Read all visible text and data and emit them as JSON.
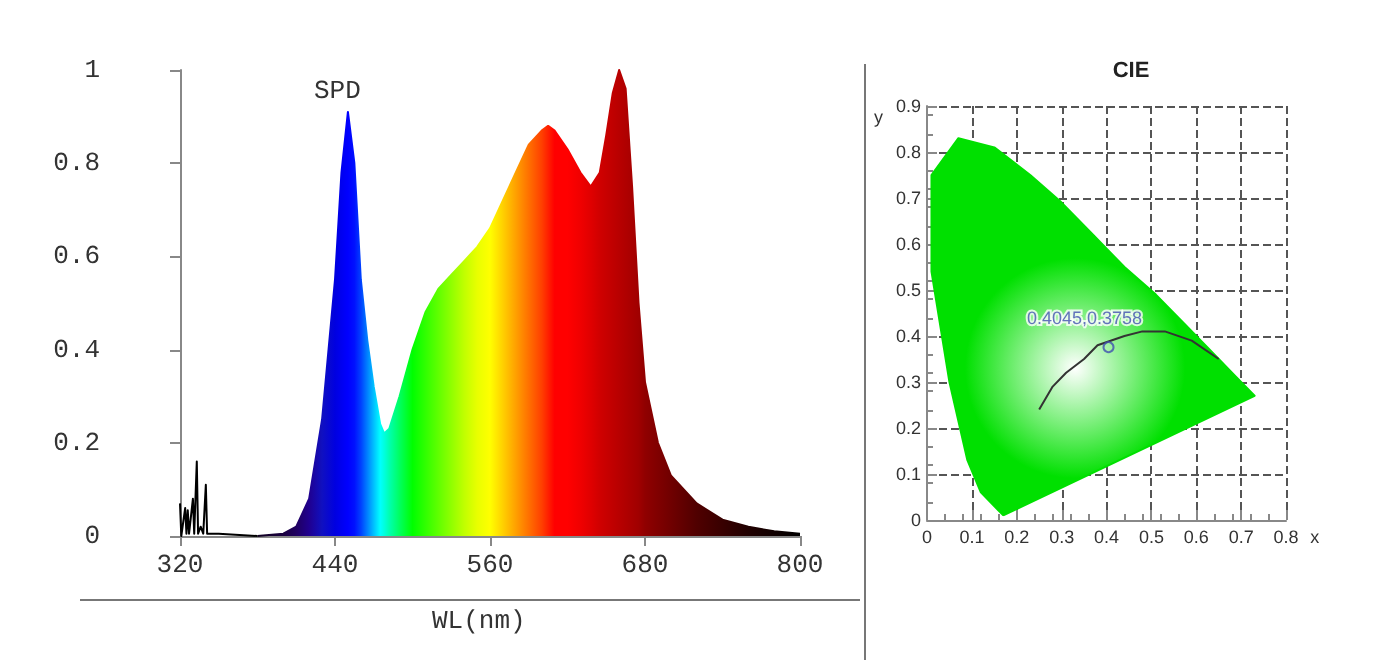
{
  "chart_data": [
    {
      "type": "area",
      "title": "SPD",
      "xlabel": "WL(nm)",
      "xlim": [
        320,
        800
      ],
      "xticks": [
        320,
        440,
        560,
        680,
        800
      ],
      "ylim": [
        0,
        1
      ],
      "yticks": [
        0,
        0.2,
        0.4,
        0.6,
        0.8,
        1
      ],
      "grid": false,
      "marker": "none",
      "series": [
        {
          "x": [
            380,
            400,
            410,
            420,
            430,
            440,
            445,
            450,
            455,
            460,
            465,
            470,
            475,
            478,
            482,
            490,
            500,
            510,
            520,
            530,
            540,
            550,
            560,
            570,
            580,
            590,
            600,
            605,
            610,
            620,
            630,
            638,
            645,
            650,
            655,
            660,
            665,
            670,
            675,
            680,
            690,
            700,
            720,
            740,
            760,
            780,
            800
          ],
          "values": [
            0,
            0.005,
            0.02,
            0.08,
            0.25,
            0.55,
            0.78,
            0.91,
            0.8,
            0.55,
            0.42,
            0.32,
            0.24,
            0.22,
            0.23,
            0.3,
            0.4,
            0.48,
            0.53,
            0.56,
            0.59,
            0.62,
            0.66,
            0.72,
            0.78,
            0.84,
            0.87,
            0.88,
            0.87,
            0.83,
            0.78,
            0.75,
            0.78,
            0.86,
            0.95,
            1,
            0.96,
            0.75,
            0.5,
            0.33,
            0.2,
            0.13,
            0.07,
            0.035,
            0.02,
            0.01,
            0.005
          ],
          "colors": [
            "#100020",
            "#1a0040",
            "#200060",
            "#200090",
            "#1010c0",
            "#0000e0",
            "#0000f0",
            "#0000ff",
            "#0010ff",
            "#0040ff",
            "#0080ff",
            "#00c0ff",
            "#00ffff",
            "#00ffe0",
            "#00ffb0",
            "#00ff60",
            "#00ff00",
            "#30ff00",
            "#60ff00",
            "#90ff00",
            "#c0ff00",
            "#e8ff00",
            "#ffff00",
            "#ffd000",
            "#ffa000",
            "#ff7000",
            "#ff4000",
            "#ff2000",
            "#ff0000",
            "#ff0000",
            "#f00000",
            "#e00000",
            "#d00000",
            "#c80000",
            "#c00000",
            "#b80000",
            "#b00000",
            "#a80000",
            "#a00000",
            "#900000",
            "#800000",
            "#700000",
            "#500000",
            "#380000",
            "#200000",
            "#100000",
            "#000000"
          ]
        },
        {
          "type": "line",
          "color": "#000000",
          "x": [
            320,
            321,
            324,
            325,
            326,
            327,
            330,
            331,
            333,
            334,
            336,
            338,
            340,
            341,
            350,
            380
          ],
          "values": [
            0.07,
            0,
            0.06,
            0.005,
            0.055,
            0.005,
            0.08,
            0.005,
            0.16,
            0.005,
            0.02,
            0.005,
            0.11,
            0.005,
            0.005,
            0
          ]
        }
      ]
    },
    {
      "type": "scatter",
      "title": "CIE",
      "xlabel": "x",
      "ylabel": "y",
      "xlim": [
        0,
        0.8
      ],
      "xticks": [
        0,
        0.1,
        0.2,
        0.3,
        0.4,
        0.5,
        0.6,
        0.7,
        0.8
      ],
      "ylim": [
        0,
        0.9
      ],
      "yticks": [
        0,
        0.1,
        0.2,
        0.3,
        0.4,
        0.5,
        0.6,
        0.7,
        0.8,
        0.9
      ],
      "grid": true,
      "series": [
        {
          "type": "area",
          "color": "#00e000",
          "marker": "none",
          "x": [
            0.17,
            0.16,
            0.12,
            0.09,
            0.05,
            0.01,
            0.01,
            0.07,
            0.15,
            0.23,
            0.3,
            0.37,
            0.44,
            0.51,
            0.58,
            0.63,
            0.69,
            0.73,
            0.17
          ],
          "values": [
            0.01,
            0.02,
            0.06,
            0.13,
            0.3,
            0.54,
            0.75,
            0.83,
            0.81,
            0.75,
            0.69,
            0.62,
            0.55,
            0.49,
            0.42,
            0.37,
            0.31,
            0.27,
            0.01
          ]
        },
        {
          "type": "line",
          "color": "#333333",
          "marker": "none",
          "x": [
            0.25,
            0.28,
            0.31,
            0.35,
            0.38,
            0.44,
            0.48,
            0.53,
            0.59,
            0.65
          ],
          "values": [
            0.24,
            0.29,
            0.32,
            0.35,
            0.38,
            0.4,
            0.41,
            0.41,
            0.39,
            0.35
          ]
        },
        {
          "type": "scatter",
          "color": "#4050b0",
          "marker": "circle",
          "x": [
            0.4045
          ],
          "values": [
            0.3758
          ],
          "value_labels": [
            "0.4045,0.3758"
          ]
        }
      ]
    }
  ]
}
